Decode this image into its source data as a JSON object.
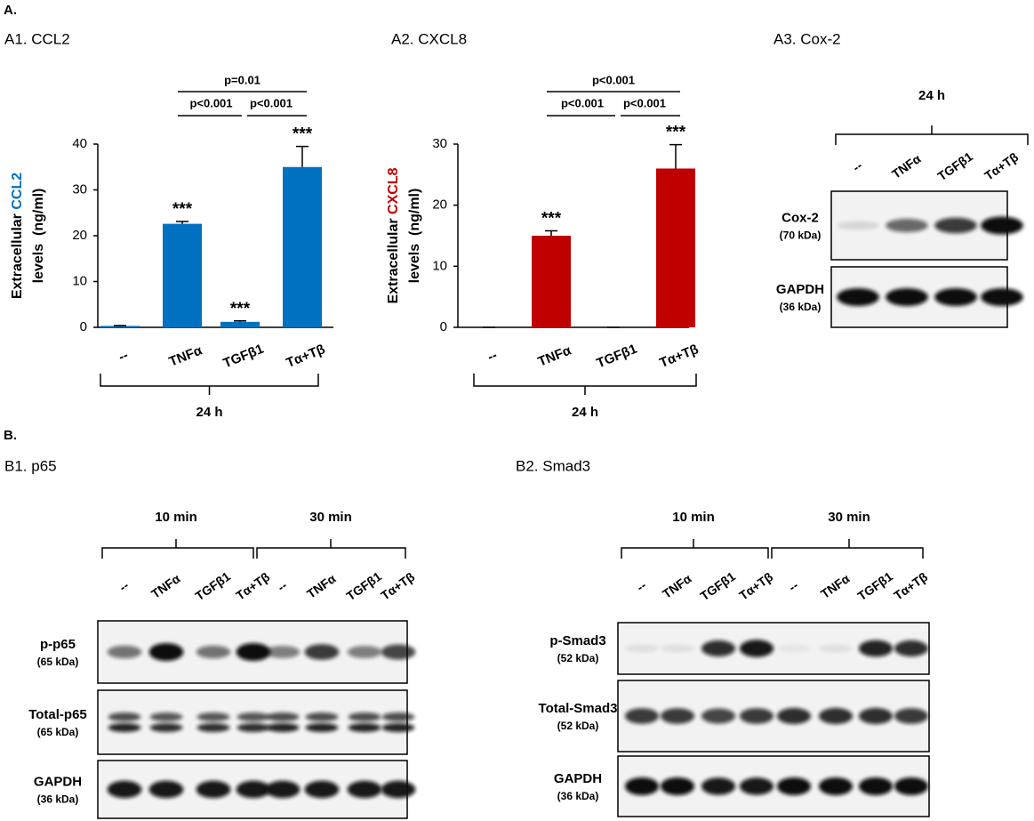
{
  "figure": {
    "section_a": "A.",
    "section_b": "B."
  },
  "chart_data": [
    {
      "type": "bar",
      "title": "A1. CCL2",
      "ylabel": "Extracellular",
      "ylabel_highlight": "CCL2",
      "ylabel_line2": "levels  (ng/ml)",
      "categories": [
        "--",
        "TNFα",
        "TGFβ1",
        "Tα+Tβ"
      ],
      "category_colors": [
        "#000000",
        "#7030a0",
        "#ed7d31",
        "#7030a0"
      ],
      "values": [
        0.3,
        22.6,
        1.2,
        35.0
      ],
      "errors": [
        0.1,
        0.5,
        0.2,
        4.5
      ],
      "color": "#0070c0",
      "ylim": [
        0,
        40
      ],
      "yticks": [
        0,
        10,
        20,
        30,
        40
      ],
      "significance": [
        null,
        "***",
        "***",
        "***"
      ],
      "comparisons": {
        "left": "p<0.001",
        "right": "p<0.001",
        "span": "p=0.01"
      },
      "group_label": "24 h"
    },
    {
      "type": "bar",
      "title": "A2. CXCL8",
      "ylabel": "Extracellular",
      "ylabel_highlight": "CXCL8",
      "ylabel_line2": "levels  (ng/ml)",
      "categories": [
        "--",
        "TNFα",
        "TGFβ1",
        "Tα+Tβ"
      ],
      "category_colors": [
        "#000000",
        "#7030a0",
        "#ed7d31",
        "#7030a0"
      ],
      "values": [
        0,
        15.0,
        0,
        26.0
      ],
      "errors": [
        0,
        0.8,
        0,
        3.9
      ],
      "color": "#c00000",
      "ylim": [
        0,
        30
      ],
      "yticks": [
        0,
        10,
        20,
        30
      ],
      "significance": [
        null,
        "***",
        null,
        "***"
      ],
      "comparisons": {
        "left": "p<0.001",
        "right": "p<0.001",
        "span": "p<0.001"
      },
      "group_label": "24 h"
    }
  ],
  "blots": [
    {
      "title": "A3. Cox-2",
      "group_labels": [
        "24 h"
      ],
      "lanes": [
        "--",
        "TNFα",
        "TGFβ1",
        "Tα+Tβ"
      ],
      "lane_colors": [
        "#000000",
        "#7030a0",
        "#ed7d31",
        "#7030a0"
      ],
      "rows": [
        {
          "name": "Cox-2",
          "size": "(70 kDa)"
        },
        {
          "name": "GAPDH",
          "size": "(36 kDa)"
        }
      ]
    },
    {
      "title": "B1. p65",
      "group_labels": [
        "10 min",
        "30 min"
      ],
      "lanes": [
        "--",
        "TNFα",
        "TGFβ1",
        "Tα+Tβ",
        "--",
        "TNFα",
        "TGFβ1",
        "Tα+Tβ"
      ],
      "lane_colors": [
        "#000000",
        "#7030a0",
        "#ed7d31",
        "#7030a0",
        "#000000",
        "#7030a0",
        "#ed7d31",
        "#7030a0"
      ],
      "rows": [
        {
          "name": "p-p65",
          "size": "(65 kDa)"
        },
        {
          "name": "Total-p65",
          "size": "(65 kDa)"
        },
        {
          "name": "GAPDH",
          "size": "(36 kDa)"
        }
      ]
    },
    {
      "title": "B2. Smad3",
      "group_labels": [
        "10 min",
        "30 min"
      ],
      "lanes": [
        "--",
        "TNFα",
        "TGFβ1",
        "Tα+Tβ",
        "--",
        "TNFα",
        "TGFβ1",
        "Tα+Tβ"
      ],
      "lane_colors": [
        "#000000",
        "#7030a0",
        "#ed7d31",
        "#7030a0",
        "#000000",
        "#7030a0",
        "#ed7d31",
        "#7030a0"
      ],
      "rows": [
        {
          "name": "p-Smad3",
          "size": "(52 kDa)"
        },
        {
          "name": "Total-Smad3",
          "size": "(52 kDa)"
        },
        {
          "name": "GAPDH",
          "size": "(36 kDa)"
        }
      ]
    }
  ]
}
